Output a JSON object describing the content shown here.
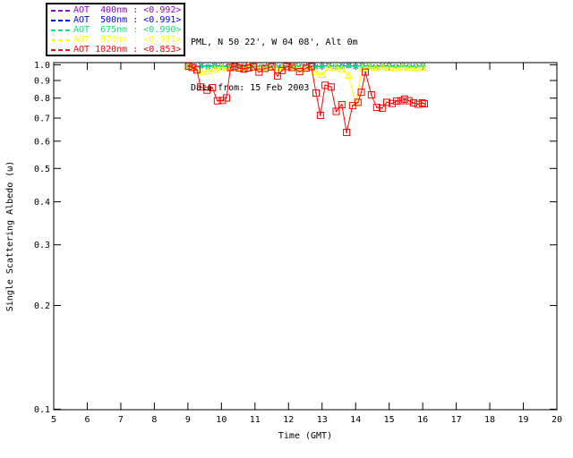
{
  "header": {
    "line1": "PML, N 50 22', W 04 08', Alt 0m",
    "line2": "Data from: 15 Feb 2003"
  },
  "legend": {
    "entries": [
      {
        "label": "AOT  400nm : <0.992>",
        "color": "#9400d3"
      },
      {
        "label": "AOT  500nm : <0.991>",
        "color": "#0000ff"
      },
      {
        "label": "AOT  675nm : <0.990>",
        "color": "#00e673"
      },
      {
        "label": "AOT  870nm : <0.981>",
        "color": "#ffff00"
      },
      {
        "label": "AOT 1020nm : <0.853>",
        "color": "#ff0000"
      }
    ]
  },
  "chart_data": {
    "type": "line",
    "title": "",
    "xlabel": "Time (GMT)",
    "ylabel": "Single Scattering Albedo (ω)",
    "xlim": [
      5,
      20
    ],
    "ylim": [
      0.1,
      1.0
    ],
    "yscale": "log",
    "grid": false,
    "legend_position": "top-left-outside",
    "xticks": [
      5,
      6,
      7,
      8,
      9,
      10,
      11,
      12,
      13,
      14,
      15,
      16,
      17,
      18,
      19,
      20
    ],
    "ytick_values": [
      1.0,
      0.9,
      0.8,
      0.7,
      0.6,
      0.5,
      0.4,
      0.3,
      0.2,
      0.1
    ],
    "ytick_labels": [
      "1.0",
      "0.9",
      "0.8",
      "0.7",
      "0.6",
      "0.5",
      "0.4",
      "0.3",
      "0.2",
      "0.1"
    ],
    "series": [
      {
        "name": "AOT 400nm",
        "legend_value": "<0.992>",
        "color": "#9400d3",
        "marker": "plus",
        "x": [
          9.0,
          9.2,
          9.4,
          9.6,
          9.8,
          10.0,
          10.2,
          10.4,
          10.6,
          10.8,
          11.0,
          11.2,
          11.4,
          11.6,
          11.8,
          12.0,
          12.2,
          12.4,
          12.6,
          12.8,
          13.0,
          13.2,
          13.4,
          13.6,
          13.8,
          14.0,
          14.2,
          14.4,
          14.6,
          14.8,
          15.0,
          15.2,
          15.4,
          15.6,
          15.8,
          16.0
        ],
        "y": [
          0.994,
          0.99,
          0.992,
          0.988,
          0.995,
          0.991,
          0.989,
          0.993,
          0.99,
          0.996,
          0.992,
          0.988,
          0.994,
          0.991,
          0.989,
          0.995,
          0.992,
          0.99,
          0.993,
          0.988,
          0.991,
          0.994,
          0.989,
          0.992,
          0.995,
          0.99,
          0.993,
          0.991,
          0.988,
          0.994,
          0.992,
          0.989,
          0.993,
          0.991,
          0.99,
          0.992
        ]
      },
      {
        "name": "AOT 500nm",
        "legend_value": "<0.991>",
        "color": "#0000ff",
        "marker": "cross",
        "x": [
          9.0,
          9.2,
          9.4,
          9.6,
          9.8,
          10.0,
          10.2,
          10.4,
          10.6,
          10.8,
          11.0,
          11.2,
          11.4,
          11.6,
          11.8,
          12.0,
          12.2,
          12.4,
          12.6,
          12.8,
          13.0,
          13.2,
          13.4,
          13.6,
          13.8,
          14.0,
          14.2,
          14.4,
          14.6,
          14.8,
          15.0,
          15.2,
          15.4,
          15.6,
          15.8,
          16.0
        ],
        "y": [
          0.992,
          0.989,
          0.991,
          0.987,
          0.993,
          0.99,
          0.988,
          0.992,
          0.989,
          0.994,
          0.991,
          0.987,
          0.993,
          0.99,
          0.988,
          0.994,
          0.991,
          0.989,
          0.992,
          0.987,
          0.99,
          0.993,
          0.988,
          0.991,
          0.994,
          0.989,
          0.992,
          0.99,
          0.987,
          0.993,
          0.991,
          0.988,
          0.992,
          0.99,
          0.989,
          0.991
        ]
      },
      {
        "name": "AOT 675nm",
        "legend_value": "<0.990>",
        "color": "#00e673",
        "marker": "asterisk",
        "x": [
          9.0,
          9.2,
          9.4,
          9.6,
          9.8,
          10.0,
          10.2,
          10.4,
          10.6,
          10.8,
          11.0,
          11.2,
          11.4,
          11.6,
          11.8,
          12.0,
          12.2,
          12.4,
          12.6,
          12.8,
          13.0,
          13.2,
          13.4,
          13.6,
          13.8,
          14.0,
          14.2,
          14.4,
          14.6,
          14.8,
          15.0,
          15.2,
          15.4,
          15.6,
          15.8,
          16.0
        ],
        "y": [
          0.991,
          0.988,
          0.99,
          0.986,
          0.992,
          0.989,
          0.987,
          0.991,
          0.988,
          0.993,
          0.99,
          0.986,
          0.992,
          0.989,
          0.987,
          0.993,
          0.99,
          0.988,
          0.991,
          0.986,
          0.989,
          0.992,
          0.987,
          0.99,
          0.993,
          0.988,
          0.991,
          0.989,
          0.986,
          0.992,
          0.99,
          0.987,
          0.991,
          0.989,
          0.988,
          0.99
        ]
      },
      {
        "name": "AOT 870nm",
        "legend_value": "<0.981>",
        "color": "#ffff00",
        "marker": "triangle",
        "x": [
          9.0,
          9.2,
          9.4,
          9.6,
          9.8,
          10.0,
          10.2,
          10.4,
          10.6,
          10.8,
          11.0,
          11.2,
          11.4,
          11.6,
          11.8,
          12.0,
          12.2,
          12.4,
          12.6,
          12.8,
          13.0,
          13.2,
          13.4,
          13.6,
          13.8,
          14.0,
          14.2,
          14.4,
          14.6,
          14.8,
          15.0,
          15.2,
          15.4,
          15.6,
          15.8,
          16.0
        ],
        "y": [
          0.985,
          0.978,
          0.952,
          0.958,
          0.97,
          0.982,
          0.975,
          0.985,
          0.979,
          0.988,
          0.983,
          0.976,
          0.985,
          0.98,
          0.974,
          0.986,
          0.981,
          0.972,
          0.984,
          0.952,
          0.935,
          0.978,
          0.982,
          0.97,
          0.93,
          0.772,
          0.975,
          0.983,
          0.978,
          0.985,
          0.98,
          0.976,
          0.982,
          0.979,
          0.977,
          0.981
        ]
      },
      {
        "name": "AOT 1020nm",
        "legend_value": "<0.853>",
        "color": "#ff0000",
        "marker": "square",
        "x": [
          9.02,
          9.13,
          9.27,
          9.38,
          9.57,
          9.73,
          9.88,
          10.03,
          10.15,
          10.27,
          10.4,
          10.53,
          10.67,
          10.8,
          10.95,
          11.12,
          11.3,
          11.5,
          11.67,
          11.8,
          11.95,
          12.1,
          12.33,
          12.53,
          12.68,
          12.82,
          12.95,
          13.09,
          13.27,
          13.42,
          13.59,
          13.73,
          13.91,
          14.07,
          14.17,
          14.29,
          14.47,
          14.63,
          14.79,
          14.93,
          15.09,
          15.22,
          15.35,
          15.46,
          15.59,
          15.73,
          15.86,
          15.99,
          16.05
        ],
        "y": [
          0.99,
          0.982,
          0.966,
          0.862,
          0.844,
          0.858,
          0.786,
          0.788,
          0.801,
          0.982,
          0.988,
          0.978,
          0.972,
          0.979,
          0.986,
          0.952,
          0.976,
          0.986,
          0.928,
          0.962,
          0.988,
          0.982,
          0.955,
          0.978,
          0.988,
          0.828,
          0.713,
          0.872,
          0.862,
          0.732,
          0.766,
          0.636,
          0.761,
          0.778,
          0.832,
          0.952,
          0.818,
          0.752,
          0.748,
          0.778,
          0.772,
          0.785,
          0.786,
          0.795,
          0.786,
          0.775,
          0.768,
          0.775,
          0.77
        ]
      }
    ]
  }
}
